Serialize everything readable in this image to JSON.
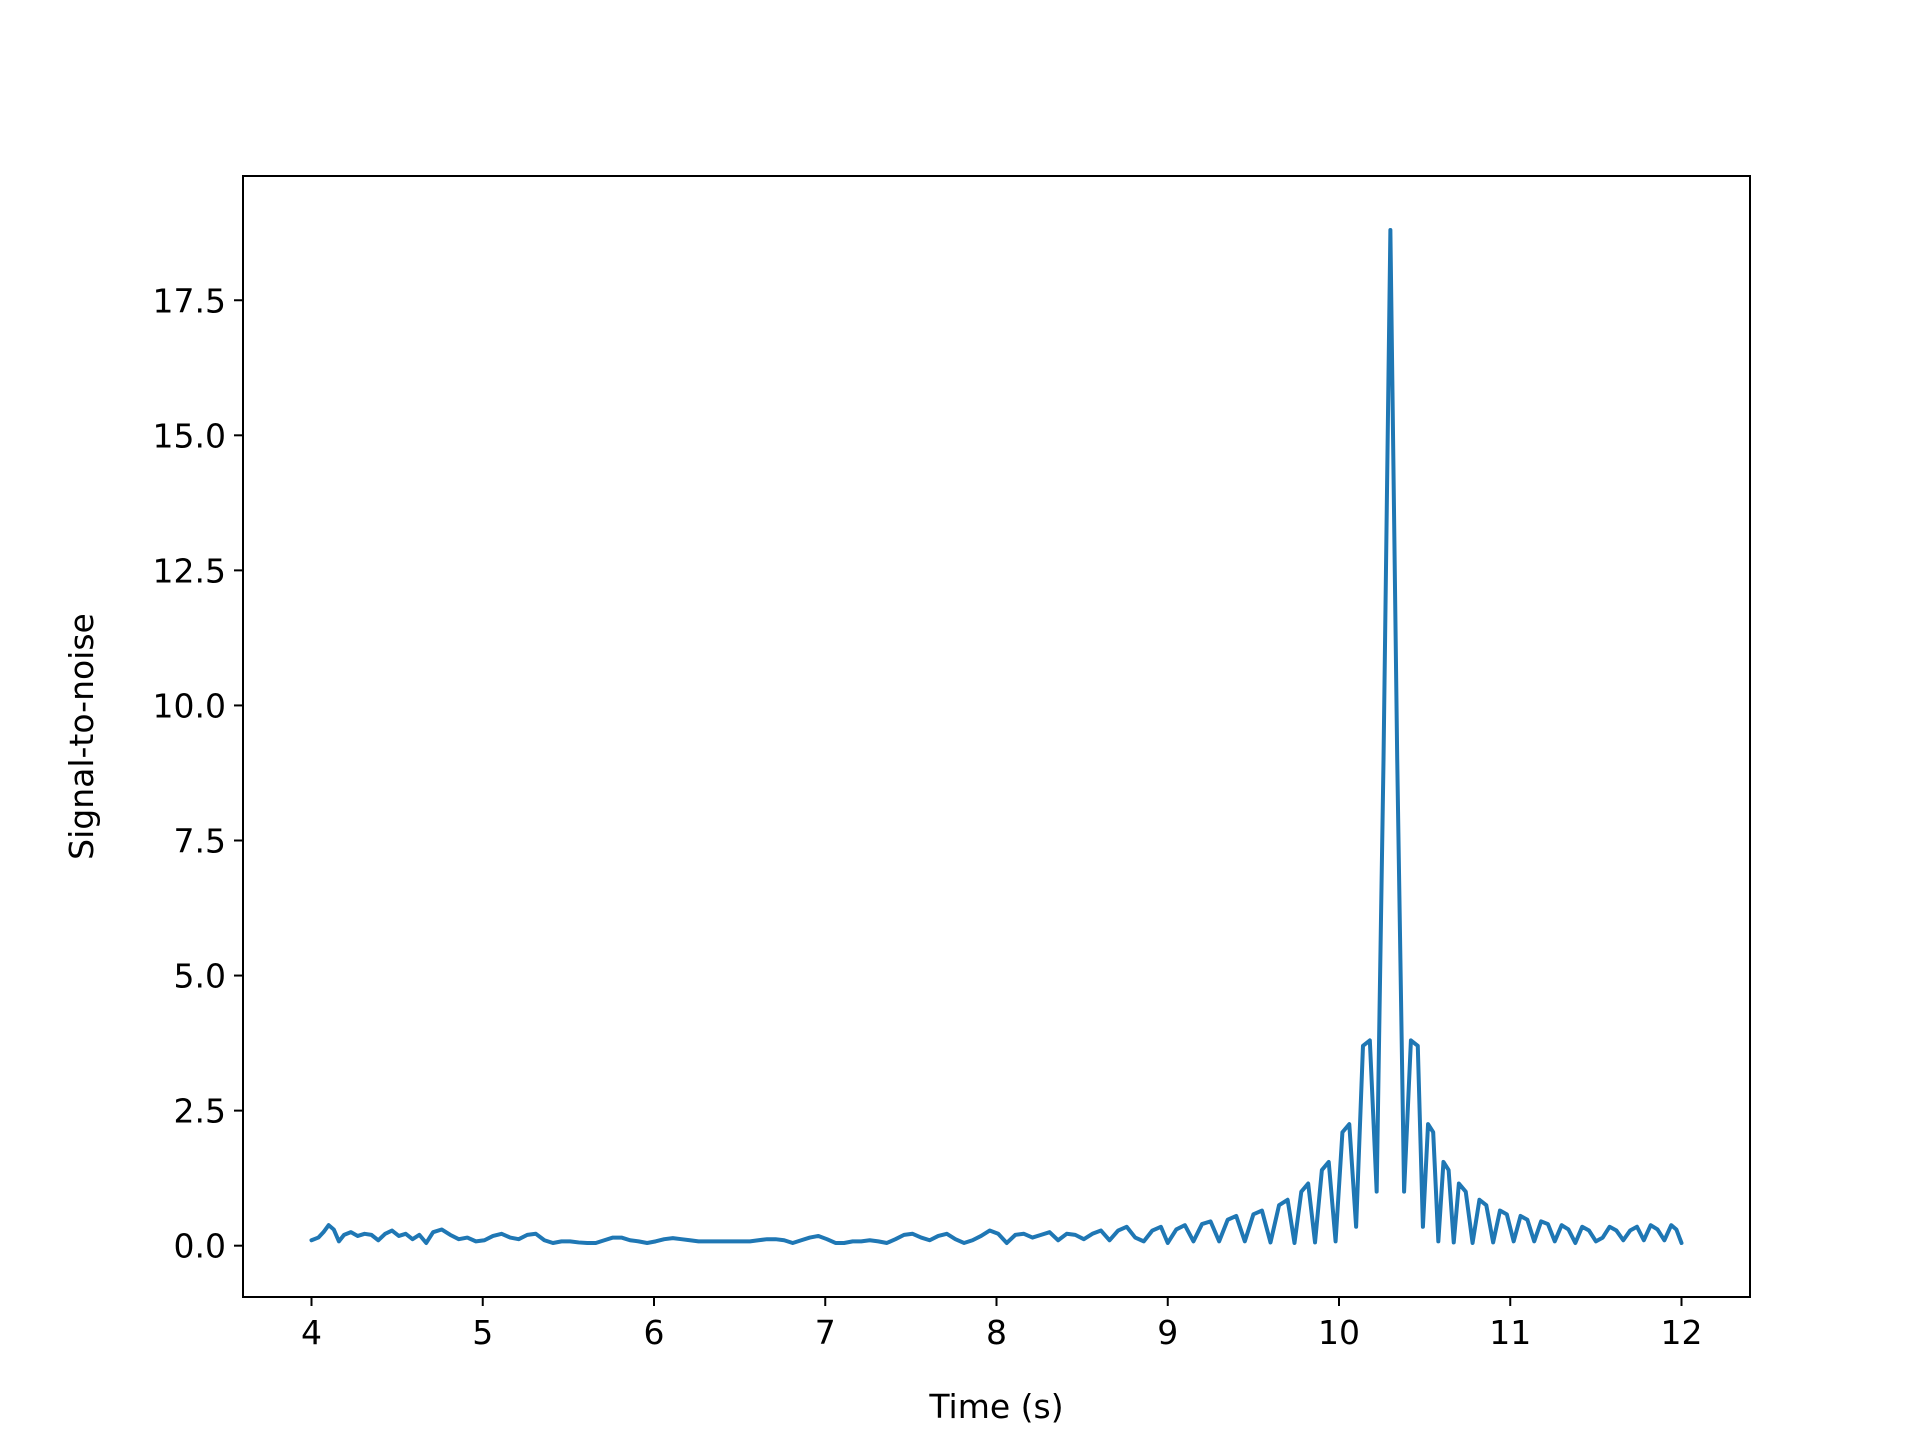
{
  "chart_data": {
    "type": "line",
    "title": "",
    "xlabel": "Time (s)",
    "ylabel": "Signal-to-noise",
    "xlim": [
      3.6,
      12.4
    ],
    "ylim": [
      -0.95,
      19.8
    ],
    "grid": false,
    "legend": "none",
    "xticks": [
      4,
      5,
      6,
      7,
      8,
      9,
      10,
      11,
      12
    ],
    "xtick_labels": [
      "4",
      "5",
      "6",
      "7",
      "8",
      "9",
      "10",
      "11",
      "12"
    ],
    "yticks": [
      0.0,
      2.5,
      5.0,
      7.5,
      10.0,
      12.5,
      15.0,
      17.5
    ],
    "ytick_labels": [
      "0.0",
      "2.5",
      "5.0",
      "7.5",
      "10.0",
      "12.5",
      "15.0",
      "17.5"
    ],
    "series": [
      {
        "color": "#1f77b4",
        "x": [
          4.0,
          4.04,
          4.07,
          4.1,
          4.13,
          4.16,
          4.19,
          4.23,
          4.27,
          4.31,
          4.35,
          4.39,
          4.43,
          4.47,
          4.51,
          4.55,
          4.59,
          4.63,
          4.67,
          4.71,
          4.76,
          4.81,
          4.86,
          4.91,
          4.96,
          5.01,
          5.06,
          5.11,
          5.16,
          5.21,
          5.26,
          5.31,
          5.36,
          5.41,
          5.46,
          5.51,
          5.56,
          5.61,
          5.66,
          5.71,
          5.76,
          5.81,
          5.86,
          5.91,
          5.96,
          6.01,
          6.06,
          6.11,
          6.16,
          6.21,
          6.26,
          6.31,
          6.36,
          6.41,
          6.46,
          6.51,
          6.56,
          6.61,
          6.66,
          6.71,
          6.76,
          6.81,
          6.86,
          6.91,
          6.96,
          7.01,
          7.06,
          7.11,
          7.16,
          7.21,
          7.26,
          7.31,
          7.36,
          7.41,
          7.46,
          7.51,
          7.56,
          7.61,
          7.66,
          7.71,
          7.76,
          7.81,
          7.86,
          7.91,
          7.96,
          8.01,
          8.06,
          8.11,
          8.16,
          8.21,
          8.26,
          8.31,
          8.36,
          8.41,
          8.46,
          8.51,
          8.56,
          8.61,
          8.66,
          8.71,
          8.76,
          8.81,
          8.86,
          8.91,
          8.96,
          9.0,
          9.05,
          9.1,
          9.15,
          9.2,
          9.25,
          9.3,
          9.35,
          9.4,
          9.45,
          9.5,
          9.55,
          9.6,
          9.65,
          9.7,
          9.74,
          9.78,
          9.82,
          9.86,
          9.9,
          9.94,
          9.98,
          10.02,
          10.06,
          10.1,
          10.14,
          10.18,
          10.22,
          10.26,
          10.3,
          10.34,
          10.38,
          10.42,
          10.46,
          10.49,
          10.52,
          10.55,
          10.58,
          10.61,
          10.64,
          10.67,
          10.7,
          10.74,
          10.78,
          10.82,
          10.86,
          10.9,
          10.94,
          10.98,
          11.02,
          11.06,
          11.1,
          11.14,
          11.18,
          11.22,
          11.26,
          11.3,
          11.34,
          11.38,
          11.42,
          11.46,
          11.5,
          11.54,
          11.58,
          11.62,
          11.66,
          11.7,
          11.74,
          11.78,
          11.82,
          11.86,
          11.9,
          11.94,
          11.97,
          12.0
        ],
        "y": [
          0.1,
          0.15,
          0.25,
          0.38,
          0.3,
          0.08,
          0.2,
          0.25,
          0.18,
          0.22,
          0.2,
          0.1,
          0.22,
          0.28,
          0.18,
          0.22,
          0.12,
          0.2,
          0.05,
          0.25,
          0.3,
          0.2,
          0.12,
          0.15,
          0.08,
          0.1,
          0.18,
          0.22,
          0.15,
          0.12,
          0.2,
          0.22,
          0.1,
          0.05,
          0.08,
          0.08,
          0.06,
          0.05,
          0.05,
          0.1,
          0.15,
          0.15,
          0.1,
          0.08,
          0.05,
          0.08,
          0.12,
          0.14,
          0.12,
          0.1,
          0.08,
          0.08,
          0.08,
          0.08,
          0.08,
          0.08,
          0.08,
          0.1,
          0.12,
          0.12,
          0.1,
          0.05,
          0.1,
          0.15,
          0.18,
          0.12,
          0.05,
          0.05,
          0.08,
          0.08,
          0.1,
          0.08,
          0.05,
          0.12,
          0.2,
          0.22,
          0.15,
          0.1,
          0.18,
          0.22,
          0.12,
          0.05,
          0.1,
          0.18,
          0.28,
          0.22,
          0.05,
          0.2,
          0.22,
          0.15,
          0.2,
          0.25,
          0.1,
          0.22,
          0.2,
          0.12,
          0.22,
          0.28,
          0.1,
          0.28,
          0.35,
          0.15,
          0.08,
          0.28,
          0.35,
          0.05,
          0.3,
          0.38,
          0.08,
          0.4,
          0.45,
          0.08,
          0.48,
          0.55,
          0.08,
          0.58,
          0.65,
          0.06,
          0.75,
          0.85,
          0.05,
          1.0,
          1.15,
          0.06,
          1.4,
          1.55,
          0.08,
          2.1,
          2.25,
          0.35,
          3.7,
          3.8,
          1.0,
          9.0,
          18.8,
          9.0,
          1.0,
          3.8,
          3.7,
          0.35,
          2.25,
          2.1,
          0.08,
          1.55,
          1.4,
          0.06,
          1.15,
          1.0,
          0.05,
          0.85,
          0.75,
          0.06,
          0.65,
          0.58,
          0.08,
          0.55,
          0.48,
          0.08,
          0.45,
          0.4,
          0.08,
          0.38,
          0.3,
          0.05,
          0.35,
          0.28,
          0.08,
          0.15,
          0.35,
          0.28,
          0.1,
          0.28,
          0.35,
          0.1,
          0.38,
          0.3,
          0.1,
          0.38,
          0.3,
          0.05
        ]
      }
    ]
  }
}
